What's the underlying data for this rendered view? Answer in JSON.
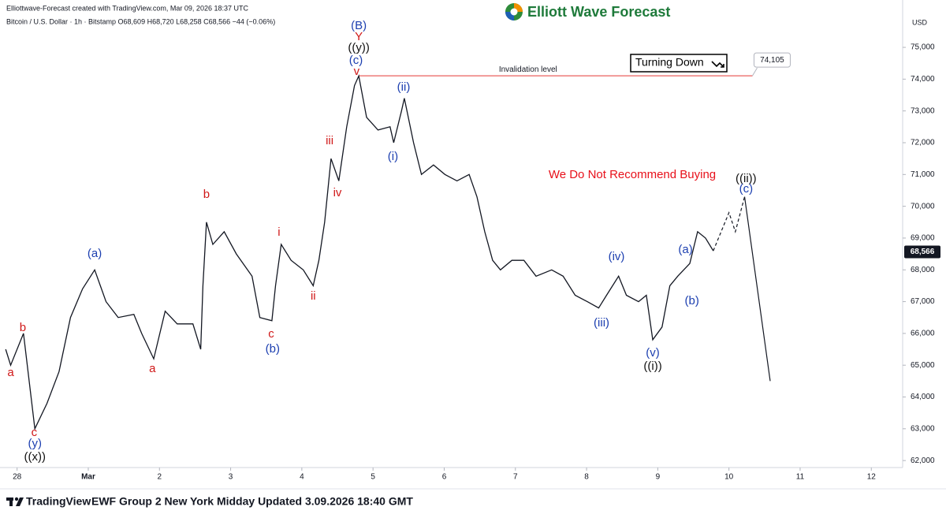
{
  "header": {
    "credit": "Elliottwave-Forecast created with TradingView.com, Mar 09, 2026 18:37 UTC",
    "symbol": "Bitcoin / U.S. Dollar · 1h · Bitstamp  O68,609 H68,720 L68,258 C68,566 −44 (−0.06%)",
    "logo": "Elliott Wave Forecast",
    "currency": "USD"
  },
  "footer": {
    "brand": "TradingView",
    "text": "EWF Group 2 New York Midday Updated 3.09.2026 18:40 GMT"
  },
  "chart_data": {
    "type": "line",
    "color": "#131722",
    "x": [
      -0.16,
      -0.09,
      0.09,
      0.25,
      0.42,
      0.59,
      0.75,
      0.92,
      1.09,
      1.25,
      1.42,
      1.64,
      1.75,
      1.92,
      2.08,
      2.25,
      2.47,
      2.58,
      2.61,
      2.66,
      2.75,
      2.91,
      3.08,
      3.3,
      3.41,
      3.58,
      3.63,
      3.71,
      3.85,
      4.02,
      4.16,
      4.24,
      4.32,
      4.41,
      4.52,
      4.63,
      4.74,
      4.8,
      4.91,
      5.07,
      5.24,
      5.29,
      5.4,
      5.44,
      5.57,
      5.68,
      5.85,
      6.01,
      6.18,
      6.35,
      6.46,
      6.57,
      6.68,
      6.79,
      6.95,
      7.12,
      7.29,
      7.51,
      7.67,
      7.84,
      8.01,
      8.17,
      8.28,
      8.45,
      8.56,
      8.73,
      8.84,
      8.93,
      9.06,
      9.17,
      9.28,
      9.45,
      9.56,
      9.67,
      9.78
    ],
    "values": [
      65500,
      65000,
      66000,
      63000,
      63800,
      64800,
      66500,
      67400,
      68000,
      67000,
      66500,
      66600,
      66000,
      65200,
      66700,
      66300,
      66300,
      65500,
      67500,
      69500,
      68800,
      69200,
      68500,
      67800,
      66500,
      66400,
      67500,
      68800,
      68300,
      68000,
      67500,
      68300,
      69500,
      71500,
      70800,
      72500,
      73800,
      74100,
      72800,
      72400,
      72500,
      72000,
      73000,
      73400,
      72000,
      71000,
      71300,
      71000,
      70800,
      71000,
      70300,
      69200,
      68300,
      68000,
      68300,
      68300,
      67800,
      68000,
      67800,
      67200,
      67000,
      66800,
      67200,
      67800,
      67200,
      67000,
      67200,
      65800,
      66200,
      67500,
      67800,
      68200,
      69200,
      69000,
      68600
    ],
    "projection": {
      "x": [
        9.78,
        10.0,
        10.09,
        10.22
      ],
      "values": [
        68600,
        69800,
        69200,
        70300
      ]
    },
    "projection_drop": {
      "x": [
        10.22,
        10.58
      ],
      "values": [
        70300,
        64500
      ]
    },
    "xlim": [
      -0.24,
      12.44
    ],
    "xticks": [
      {
        "value": 0,
        "label": "28"
      },
      {
        "value": 1,
        "label": "Mar"
      },
      2,
      3,
      4,
      5,
      6,
      7,
      8,
      9,
      10,
      11,
      12
    ],
    "ylim": [
      61780,
      76490
    ],
    "yticks": [
      {
        "value": 62000,
        "label": "62,000"
      },
      {
        "value": 63000,
        "label": "63,000"
      },
      {
        "value": 64000,
        "label": "64,000"
      },
      {
        "value": 65000,
        "label": "65,000"
      },
      {
        "value": 66000,
        "label": "66,000"
      },
      {
        "value": 67000,
        "label": "67,000"
      },
      {
        "value": 68000,
        "label": "68,000"
      },
      {
        "value": 69000,
        "label": "69,000"
      },
      {
        "value": 70000,
        "label": "70,000"
      },
      {
        "value": 71000,
        "label": "71,000"
      },
      {
        "value": 72000,
        "label": "72,000"
      },
      {
        "value": 73000,
        "label": "73,000"
      },
      {
        "value": 74000,
        "label": "74,000"
      },
      {
        "value": 75000,
        "label": "75,000"
      }
    ],
    "grid": false,
    "last_price": {
      "value": 68566,
      "label": "68,566"
    },
    "invalidation": {
      "value": 74105,
      "label": "74,105",
      "text": "Invalidation level",
      "x": [
        4.8,
        10.33
      ],
      "color": "#e53935"
    },
    "badge": "Turning Down",
    "warning": {
      "text": "We Do Not Recommend Buying",
      "color": "#e8101a"
    },
    "annotations": [
      {
        "text": "a",
        "x": -0.09,
        "y": 64750,
        "color": "#d01818"
      },
      {
        "text": "b",
        "x": 0.08,
        "y": 66170,
        "color": "#d01818"
      },
      {
        "text": "c",
        "x": 0.24,
        "y": 62870,
        "color": "#d01818"
      },
      {
        "text": "(y)",
        "x": 0.25,
        "y": 62520,
        "color": "#1c3fb0"
      },
      {
        "text": "((x))",
        "x": 0.25,
        "y": 62100,
        "color": "#111111"
      },
      {
        "text": "(a)",
        "x": 1.09,
        "y": 68500,
        "color": "#1c3fb0"
      },
      {
        "text": "a",
        "x": 1.9,
        "y": 64880,
        "color": "#d01818"
      },
      {
        "text": "b",
        "x": 2.66,
        "y": 70360,
        "color": "#d01818"
      },
      {
        "text": "c",
        "x": 3.57,
        "y": 65970,
        "color": "#d01818"
      },
      {
        "text": "(b)",
        "x": 3.59,
        "y": 65500,
        "color": "#1c3fb0"
      },
      {
        "text": "i",
        "x": 3.68,
        "y": 69170,
        "color": "#d01818"
      },
      {
        "text": "ii",
        "x": 4.16,
        "y": 67160,
        "color": "#d01818"
      },
      {
        "text": "iii",
        "x": 4.39,
        "y": 72050,
        "color": "#d01818"
      },
      {
        "text": "iv",
        "x": 4.5,
        "y": 70410,
        "color": "#d01818"
      },
      {
        "text": "(B)",
        "x": 4.8,
        "y": 75670,
        "color": "#1c3fb0"
      },
      {
        "text": "Y",
        "x": 4.8,
        "y": 75320,
        "color": "#d01818"
      },
      {
        "text": "((y))",
        "x": 4.8,
        "y": 74980,
        "color": "#111111"
      },
      {
        "text": "(c)",
        "x": 4.76,
        "y": 74580,
        "color": "#1c3fb0"
      },
      {
        "text": "v",
        "x": 4.77,
        "y": 74230,
        "color": "#d01818"
      },
      {
        "text": "(ii)",
        "x": 5.43,
        "y": 73730,
        "color": "#1c3fb0"
      },
      {
        "text": "(i)",
        "x": 5.28,
        "y": 71550,
        "color": "#1c3fb0"
      },
      {
        "text": "(iv)",
        "x": 8.42,
        "y": 68400,
        "color": "#1c3fb0"
      },
      {
        "text": "(iii)",
        "x": 8.21,
        "y": 66320,
        "color": "#1c3fb0"
      },
      {
        "text": "(v)",
        "x": 8.93,
        "y": 65370,
        "color": "#1c3fb0"
      },
      {
        "text": "((i))",
        "x": 8.93,
        "y": 64950,
        "color": "#111111"
      },
      {
        "text": "(a)",
        "x": 9.39,
        "y": 68620,
        "color": "#1c3fb0"
      },
      {
        "text": "(b)",
        "x": 9.48,
        "y": 67010,
        "color": "#1c3fb0"
      },
      {
        "text": "((ii))",
        "x": 10.24,
        "y": 70860,
        "color": "#111111"
      },
      {
        "text": "(c)",
        "x": 10.24,
        "y": 70530,
        "color": "#1c3fb0"
      }
    ]
  }
}
